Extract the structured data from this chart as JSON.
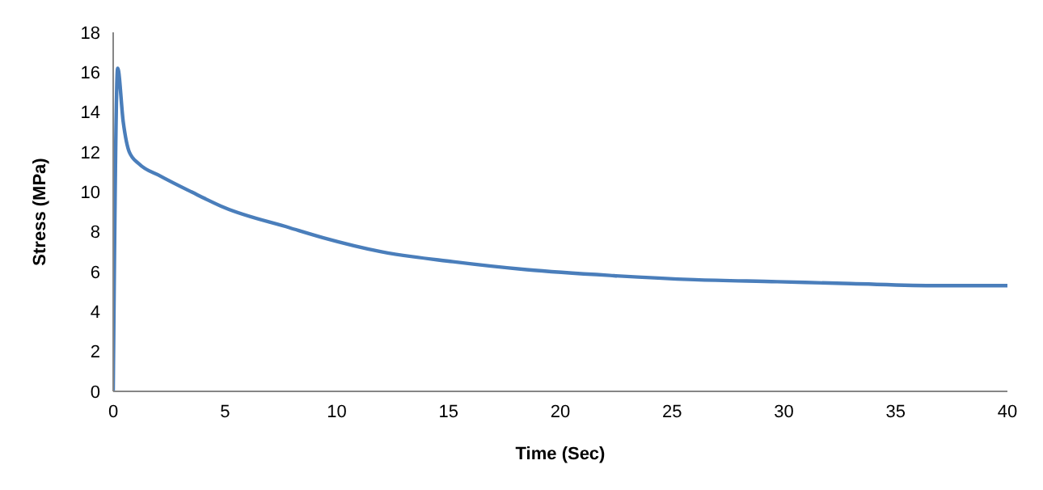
{
  "chart_data": {
    "type": "line",
    "xlabel": "Time (Sec)",
    "ylabel": "Stress (MPa)",
    "x": [
      0,
      0.2,
      0.45,
      0.72,
      1.16,
      2.1,
      3.5,
      5,
      7.9,
      9.4,
      12,
      15.2,
      18.5,
      22.4,
      26,
      29.7,
      33,
      36.9,
      40
    ],
    "series": [
      {
        "color": "#4a7ebb",
        "values": [
          0,
          16.2,
          13.5,
          12.0,
          11.4,
          10.8,
          10.0,
          9.2,
          8.2,
          7.7,
          7.0,
          6.5,
          6.1,
          5.8,
          5.6,
          5.5,
          5.4,
          5.3,
          5.3
        ]
      }
    ],
    "xlim": [
      0,
      40
    ],
    "xticks": [
      0,
      5,
      10,
      15,
      20,
      25,
      30,
      35,
      40
    ],
    "ylim": [
      0,
      18
    ],
    "yticks": [
      0,
      2,
      4,
      6,
      8,
      10,
      12,
      14,
      16,
      18
    ],
    "grid": false,
    "legend": false,
    "marker": "none",
    "line_style": "solid"
  }
}
